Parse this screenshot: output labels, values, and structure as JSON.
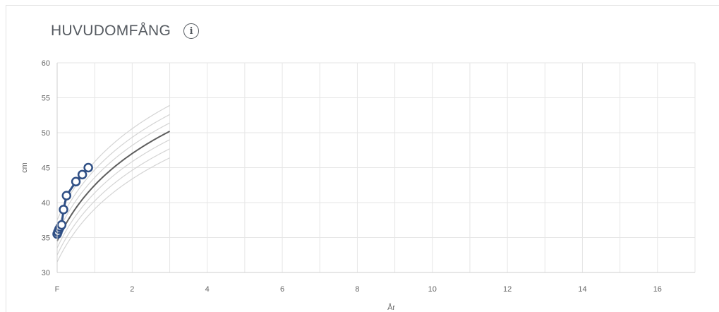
{
  "header": {
    "title": "HUVUDOMFÅNG",
    "info_icon": "info-icon"
  },
  "colors": {
    "reference_curve": "#d4d4d4",
    "median_curve": "#5e5e5e",
    "measurement_line": "#2f4f85",
    "measurement_point_fill": "#ffffff",
    "grid": "#e6e6e6"
  },
  "chart_data": {
    "type": "line",
    "title": "HUVUDOMFÅNG",
    "xlabel": "År",
    "ylabel": "cm",
    "xlim": [
      0,
      17
    ],
    "ylim": [
      30,
      60
    ],
    "x_ticks": [
      {
        "value": 0,
        "label": "F"
      },
      {
        "value": 2,
        "label": "2"
      },
      {
        "value": 4,
        "label": "4"
      },
      {
        "value": 6,
        "label": "6"
      },
      {
        "value": 8,
        "label": "8"
      },
      {
        "value": 10,
        "label": "10"
      },
      {
        "value": 12,
        "label": "12"
      },
      {
        "value": 14,
        "label": "14"
      },
      {
        "value": 16,
        "label": "16"
      }
    ],
    "y_ticks": [
      30,
      35,
      40,
      45,
      50,
      55,
      60
    ],
    "grid": true,
    "reference_curves": [
      {
        "at_birth": 31.5,
        "at_3y": 46.4
      },
      {
        "at_birth": 32.5,
        "at_3y": 47.7
      },
      {
        "at_birth": 33.5,
        "at_3y": 49.0
      },
      {
        "at_birth": 34.5,
        "at_3y": 50.2,
        "median": true
      },
      {
        "at_birth": 35.5,
        "at_3y": 51.4
      },
      {
        "at_birth": 36.5,
        "at_3y": 52.6
      },
      {
        "at_birth": 37.5,
        "at_3y": 53.9
      }
    ],
    "reference_x_max": 3,
    "series": [
      {
        "x": [
          0.0,
          0.02,
          0.05,
          0.08,
          0.12,
          0.17,
          0.25,
          0.5,
          0.67,
          0.83
        ],
        "y": [
          35.5,
          35.8,
          36.2,
          36.5,
          36.8,
          39.0,
          41.0,
          43.0,
          44.0,
          45.0
        ]
      }
    ]
  }
}
